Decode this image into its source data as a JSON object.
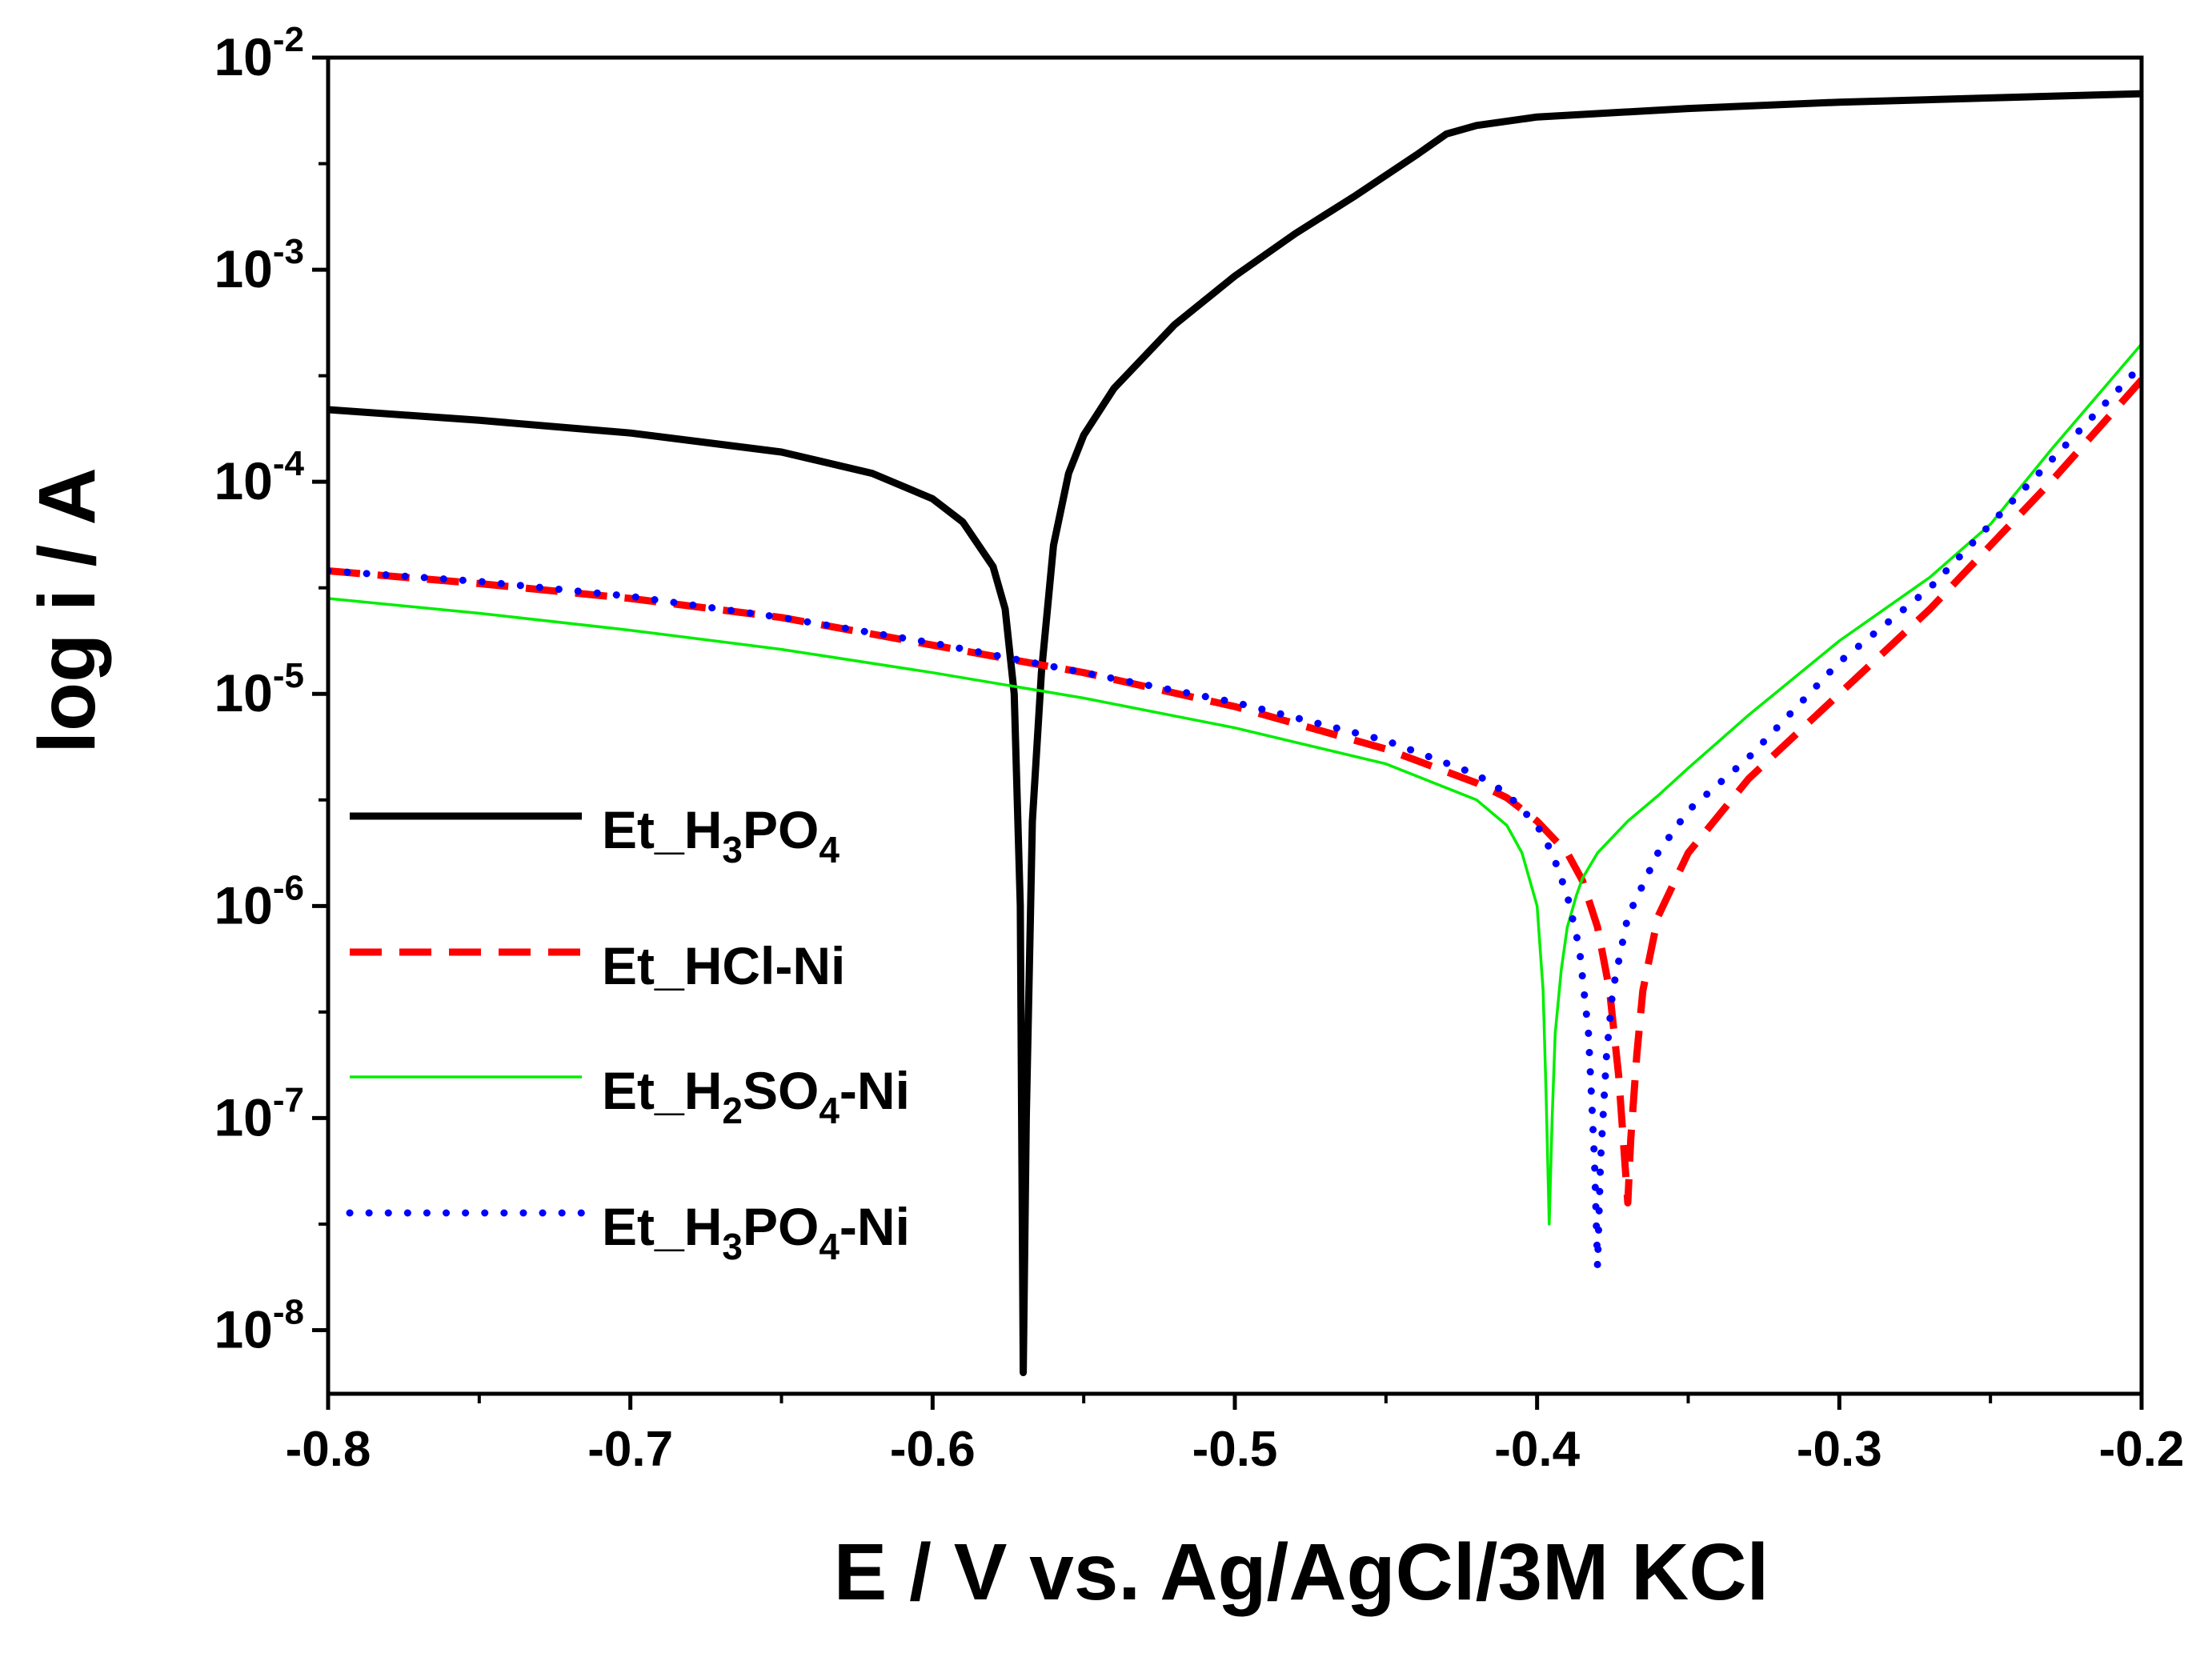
{
  "chart_data": {
    "type": "line",
    "title": "",
    "xlabel": "E / V vs. Ag/AgCl/3M KCl",
    "ylabel": "log i / A",
    "xlim": [
      -0.8,
      -0.2
    ],
    "ylim_log10": [
      -8.3,
      -2
    ],
    "y_scale": "log",
    "x_ticks": [
      -0.8,
      -0.7,
      -0.6,
      -0.5,
      -0.4,
      -0.3,
      -0.2
    ],
    "x_tick_labels": [
      "-0.8",
      "-0.7",
      "-0.6",
      "-0.5",
      "-0.4",
      "-0.3",
      "-0.2"
    ],
    "y_tick_exponents": [
      -2,
      -3,
      -4,
      -5,
      -6,
      -7,
      -8
    ],
    "y_tick_labels": [
      {
        "base": "10",
        "exp": "-2"
      },
      {
        "base": "10",
        "exp": "-3"
      },
      {
        "base": "10",
        "exp": "-4"
      },
      {
        "base": "10",
        "exp": "-5"
      },
      {
        "base": "10",
        "exp": "-6"
      },
      {
        "base": "10",
        "exp": "-7"
      },
      {
        "base": "10",
        "exp": "-8"
      }
    ],
    "legend_position": "middle-left",
    "series": [
      {
        "name": "Et_H3PO4",
        "label_parts": [
          {
            "t": "Et_H"
          },
          {
            "t": "3",
            "sub": true
          },
          {
            "t": "PO"
          },
          {
            "t": "4",
            "sub": true
          }
        ],
        "color": "#000000",
        "style": "solid-thick",
        "x": [
          -0.8,
          -0.75,
          -0.7,
          -0.65,
          -0.62,
          -0.6,
          -0.59,
          -0.58,
          -0.576,
          -0.573,
          -0.571,
          -0.57,
          -0.569,
          -0.567,
          -0.564,
          -0.56,
          -0.555,
          -0.55,
          -0.54,
          -0.52,
          -0.5,
          -0.48,
          -0.46,
          -0.44,
          -0.43,
          -0.42,
          -0.4,
          -0.35,
          -0.3,
          -0.25,
          -0.2
        ],
        "log_i": [
          -3.66,
          -3.71,
          -3.77,
          -3.86,
          -3.96,
          -4.08,
          -4.19,
          -4.4,
          -4.6,
          -5.0,
          -6.0,
          -8.2,
          -7.0,
          -5.6,
          -4.9,
          -4.3,
          -3.96,
          -3.78,
          -3.56,
          -3.26,
          -3.03,
          -2.83,
          -2.65,
          -2.46,
          -2.36,
          -2.32,
          -2.28,
          -2.24,
          -2.21,
          -2.19,
          -2.17
        ]
      },
      {
        "name": "Et_HCl-Ni",
        "label_parts": [
          {
            "t": "Et_HCl-Ni"
          }
        ],
        "color": "#ff0000",
        "style": "dashed",
        "x": [
          -0.8,
          -0.75,
          -0.7,
          -0.65,
          -0.6,
          -0.55,
          -0.5,
          -0.45,
          -0.42,
          -0.41,
          -0.4,
          -0.39,
          -0.385,
          -0.38,
          -0.376,
          -0.373,
          -0.371,
          -0.37,
          -0.369,
          -0.367,
          -0.365,
          -0.36,
          -0.35,
          -0.33,
          -0.3,
          -0.27,
          -0.25,
          -0.23,
          -0.2
        ],
        "log_i": [
          -4.42,
          -4.48,
          -4.55,
          -4.64,
          -4.77,
          -4.9,
          -5.06,
          -5.26,
          -5.42,
          -5.49,
          -5.6,
          -5.75,
          -5.88,
          -6.1,
          -6.4,
          -6.8,
          -7.2,
          -7.4,
          -7.1,
          -6.7,
          -6.4,
          -6.05,
          -5.75,
          -5.4,
          -5.0,
          -4.6,
          -4.3,
          -4.0,
          -3.52
        ]
      },
      {
        "name": "Et_H2SO4-Ni",
        "label_parts": [
          {
            "t": "Et_H"
          },
          {
            "t": "2",
            "sub": true
          },
          {
            "t": "SO"
          },
          {
            "t": "4",
            "sub": true
          },
          {
            "t": "-Ni"
          }
        ],
        "color": "#00ee00",
        "style": "solid-thin",
        "x": [
          -0.8,
          -0.75,
          -0.7,
          -0.65,
          -0.6,
          -0.55,
          -0.5,
          -0.45,
          -0.42,
          -0.41,
          -0.405,
          -0.4,
          -0.398,
          -0.397,
          -0.396,
          -0.395,
          -0.394,
          -0.392,
          -0.39,
          -0.387,
          -0.385,
          -0.38,
          -0.37,
          -0.36,
          -0.35,
          -0.33,
          -0.3,
          -0.27,
          -0.25,
          -0.23,
          -0.2
        ],
        "log_i": [
          -4.55,
          -4.62,
          -4.7,
          -4.79,
          -4.9,
          -5.02,
          -5.16,
          -5.33,
          -5.5,
          -5.62,
          -5.75,
          -6.0,
          -6.4,
          -6.9,
          -7.5,
          -7.0,
          -6.6,
          -6.3,
          -6.1,
          -5.95,
          -5.87,
          -5.75,
          -5.6,
          -5.48,
          -5.35,
          -5.1,
          -4.75,
          -4.45,
          -4.2,
          -3.85,
          -3.35
        ]
      },
      {
        "name": "Et_H3PO4-Ni",
        "label_parts": [
          {
            "t": "Et_H"
          },
          {
            "t": "3",
            "sub": true
          },
          {
            "t": "PO"
          },
          {
            "t": "4",
            "sub": true
          },
          {
            "t": "-Ni"
          }
        ],
        "color": "#0000ff",
        "style": "dotted",
        "x": [
          -0.8,
          -0.75,
          -0.7,
          -0.65,
          -0.6,
          -0.55,
          -0.5,
          -0.45,
          -0.42,
          -0.41,
          -0.4,
          -0.395,
          -0.39,
          -0.386,
          -0.383,
          -0.381,
          -0.38,
          -0.379,
          -0.377,
          -0.375,
          -0.37,
          -0.36,
          -0.35,
          -0.33,
          -0.3,
          -0.27,
          -0.25,
          -0.23,
          -0.2
        ],
        "log_i": [
          -4.42,
          -4.47,
          -4.54,
          -4.64,
          -4.76,
          -4.9,
          -5.04,
          -5.22,
          -5.38,
          -5.47,
          -5.62,
          -5.75,
          -5.95,
          -6.2,
          -6.6,
          -7.2,
          -7.7,
          -7.2,
          -6.7,
          -6.4,
          -6.05,
          -5.75,
          -5.55,
          -5.3,
          -4.85,
          -4.5,
          -4.2,
          -3.9,
          -3.45
        ]
      }
    ]
  }
}
